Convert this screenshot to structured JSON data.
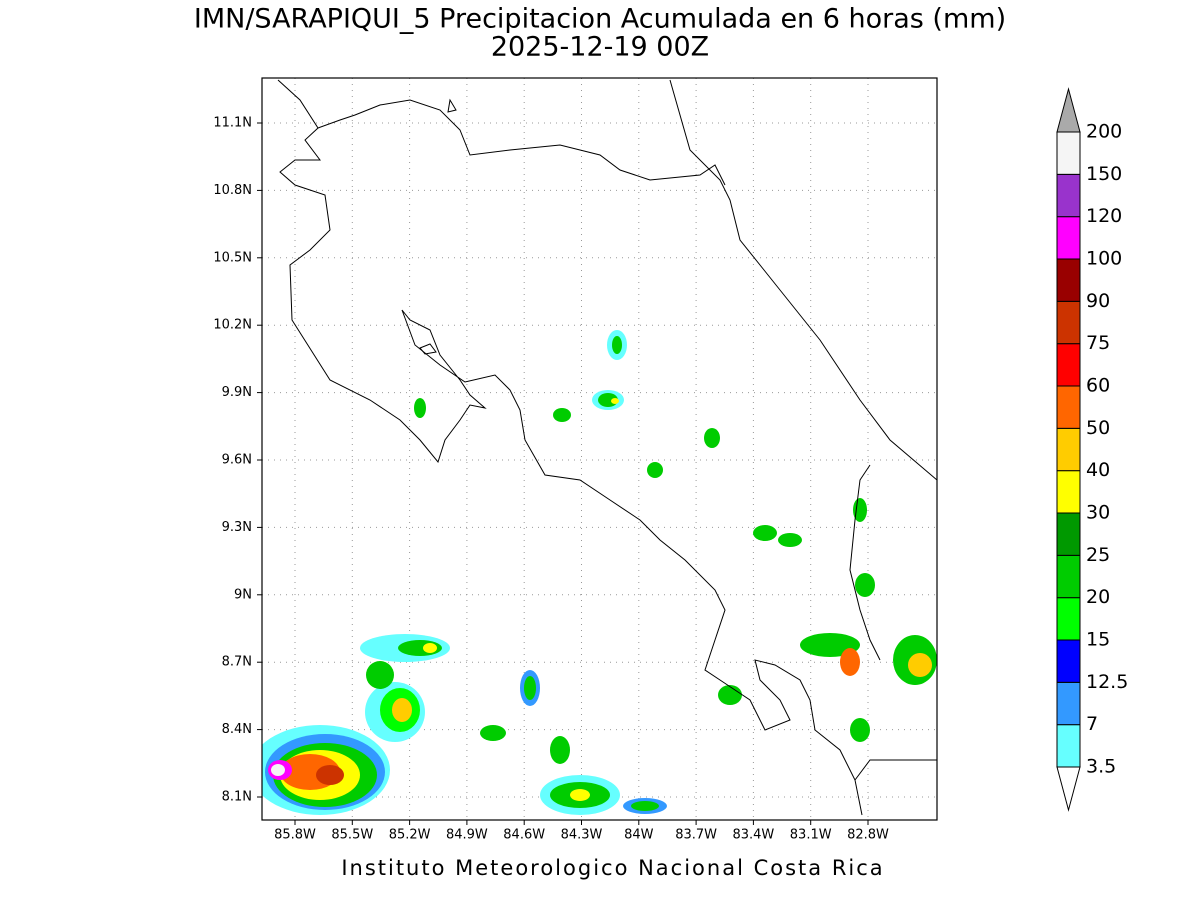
{
  "header": {
    "title": "IMN/SARAPIQUI_5 Precipitacion Acumulada en 6 horas (mm)",
    "subtitle": "2025-12-19 00Z"
  },
  "map": {
    "xticks": [
      "85.8W",
      "85.5W",
      "85.2W",
      "84.9W",
      "84.6W",
      "84.3W",
      "84W",
      "83.7W",
      "83.4W",
      "83.1W",
      "82.8W"
    ],
    "yticks": [
      "8.1N",
      "8.4N",
      "8.7N",
      "9N",
      "9.3N",
      "9.6N",
      "9.9N",
      "10.2N",
      "10.5N",
      "10.8N",
      "11.1N"
    ]
  },
  "colorbar": {
    "levels": [
      3.5,
      7,
      12.5,
      15,
      20,
      25,
      30,
      40,
      50,
      60,
      75,
      90,
      100,
      120,
      150,
      200
    ],
    "colors": [
      "#ffffff",
      "#66ffff",
      "#3399ff",
      "#0000ff",
      "#00ff00",
      "#00cc00",
      "#009900",
      "#ffff00",
      "#ffcc00",
      "#ff6600",
      "#ff0000",
      "#cc3300",
      "#990000",
      "#ff00ff",
      "#9933cc",
      "#f5f5f5",
      "#aaaaaa"
    ]
  },
  "footer": "Instituto Meteorologico Nacional Costa Rica"
}
